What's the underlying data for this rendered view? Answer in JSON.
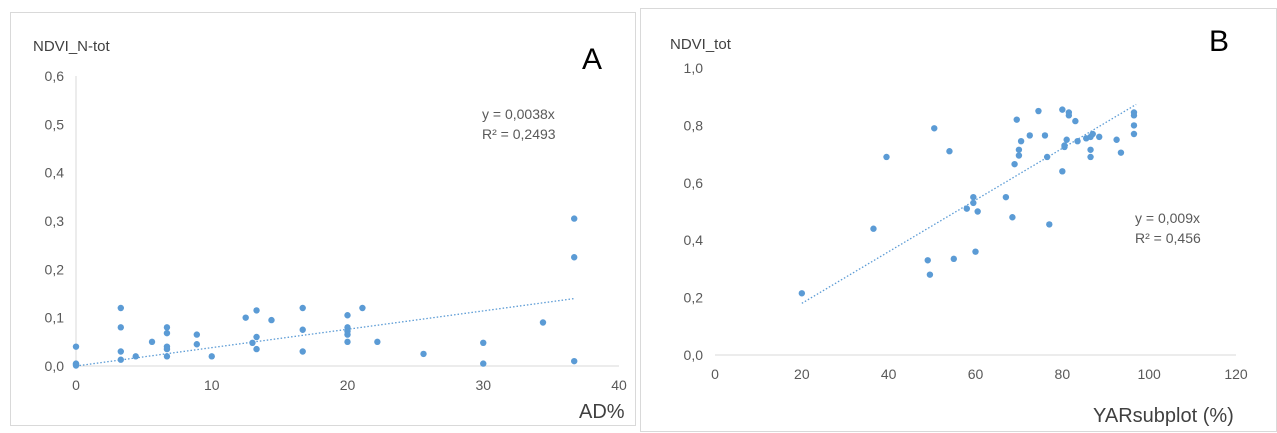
{
  "chart_data": [
    {
      "type": "scatter",
      "panel_label": "A",
      "ylabel": "NDVI_N-tot",
      "xlabel": "AD%",
      "xlim": [
        0,
        40
      ],
      "ylim": [
        0,
        0.6
      ],
      "x_ticks": [
        "0",
        "10",
        "20",
        "30",
        "40"
      ],
      "y_ticks": [
        "0,0",
        "0,1",
        "0,2",
        "0,3",
        "0,4",
        "0,5",
        "0,6"
      ],
      "grid": false,
      "point_color": "#5b9bd5",
      "trendline": {
        "slope": 0.0038,
        "x_range": [
          0,
          36.7
        ],
        "color": "#5b9bd5"
      },
      "equation": "y = 0,0038x",
      "r2": "R² = 0,2493",
      "points": [
        [
          0,
          0.04
        ],
        [
          0,
          0.005
        ],
        [
          0,
          0.003
        ],
        [
          0,
          0.001
        ],
        [
          3.3,
          0.12
        ],
        [
          3.3,
          0.08
        ],
        [
          3.3,
          0.03
        ],
        [
          3.3,
          0.013
        ],
        [
          4.4,
          0.02
        ],
        [
          5.6,
          0.05
        ],
        [
          6.7,
          0.08
        ],
        [
          6.7,
          0.068
        ],
        [
          6.7,
          0.04
        ],
        [
          6.7,
          0.035
        ],
        [
          6.7,
          0.02
        ],
        [
          8.9,
          0.065
        ],
        [
          8.9,
          0.045
        ],
        [
          10,
          0.02
        ],
        [
          12.5,
          0.1
        ],
        [
          13,
          0.048
        ],
        [
          13.3,
          0.115
        ],
        [
          13.3,
          0.06
        ],
        [
          13.3,
          0.035
        ],
        [
          14.4,
          0.095
        ],
        [
          16.7,
          0.12
        ],
        [
          16.7,
          0.075
        ],
        [
          16.7,
          0.03
        ],
        [
          20,
          0.105
        ],
        [
          20,
          0.08
        ],
        [
          20,
          0.072
        ],
        [
          20,
          0.065
        ],
        [
          20,
          0.05
        ],
        [
          21.1,
          0.12
        ],
        [
          22.2,
          0.05
        ],
        [
          25.6,
          0.025
        ],
        [
          30,
          0.048
        ],
        [
          30,
          0.005
        ],
        [
          34.4,
          0.09
        ],
        [
          36.7,
          0.305
        ],
        [
          36.7,
          0.225
        ],
        [
          36.7,
          0.01
        ]
      ]
    },
    {
      "type": "scatter",
      "panel_label": "B",
      "ylabel": "NDVI_tot",
      "xlabel": "YARsubplot (%)",
      "xlim": [
        0,
        120
      ],
      "ylim": [
        0,
        1.0
      ],
      "x_ticks": [
        "0",
        "20",
        "40",
        "60",
        "80",
        "100",
        "120"
      ],
      "y_ticks": [
        "0,0",
        "0,2",
        "0,4",
        "0,6",
        "0,8",
        "1,0"
      ],
      "grid": false,
      "point_color": "#5b9bd5",
      "trendline": {
        "slope": 0.009,
        "x_range": [
          20,
          97
        ],
        "color": "#5b9bd5"
      },
      "equation": "y = 0,009x",
      "r2": "R² = 0,456",
      "points": [
        [
          20,
          0.215
        ],
        [
          36.5,
          0.44
        ],
        [
          39.5,
          0.69
        ],
        [
          49,
          0.33
        ],
        [
          49.5,
          0.28
        ],
        [
          50.5,
          0.79
        ],
        [
          54,
          0.71
        ],
        [
          55,
          0.335
        ],
        [
          58,
          0.51
        ],
        [
          59.5,
          0.53
        ],
        [
          59.5,
          0.55
        ],
        [
          60,
          0.36
        ],
        [
          60.5,
          0.5
        ],
        [
          67,
          0.55
        ],
        [
          68.5,
          0.48
        ],
        [
          69,
          0.665
        ],
        [
          69.5,
          0.82
        ],
        [
          70,
          0.695
        ],
        [
          70,
          0.715
        ],
        [
          70.5,
          0.745
        ],
        [
          72.5,
          0.765
        ],
        [
          74.5,
          0.85
        ],
        [
          76,
          0.765
        ],
        [
          76.5,
          0.69
        ],
        [
          77,
          0.455
        ],
        [
          80,
          0.855
        ],
        [
          80,
          0.64
        ],
        [
          80.5,
          0.73
        ],
        [
          80.5,
          0.725
        ],
        [
          81,
          0.75
        ],
        [
          81.5,
          0.835
        ],
        [
          81.5,
          0.845
        ],
        [
          83,
          0.815
        ],
        [
          83.5,
          0.745
        ],
        [
          85.5,
          0.755
        ],
        [
          86.5,
          0.76
        ],
        [
          86.5,
          0.715
        ],
        [
          86.5,
          0.69
        ],
        [
          87,
          0.77
        ],
        [
          88.5,
          0.76
        ],
        [
          92.5,
          0.75
        ],
        [
          93.5,
          0.705
        ],
        [
          96.5,
          0.845
        ],
        [
          96.5,
          0.835
        ],
        [
          96.5,
          0.8
        ],
        [
          96.5,
          0.77
        ]
      ]
    }
  ]
}
